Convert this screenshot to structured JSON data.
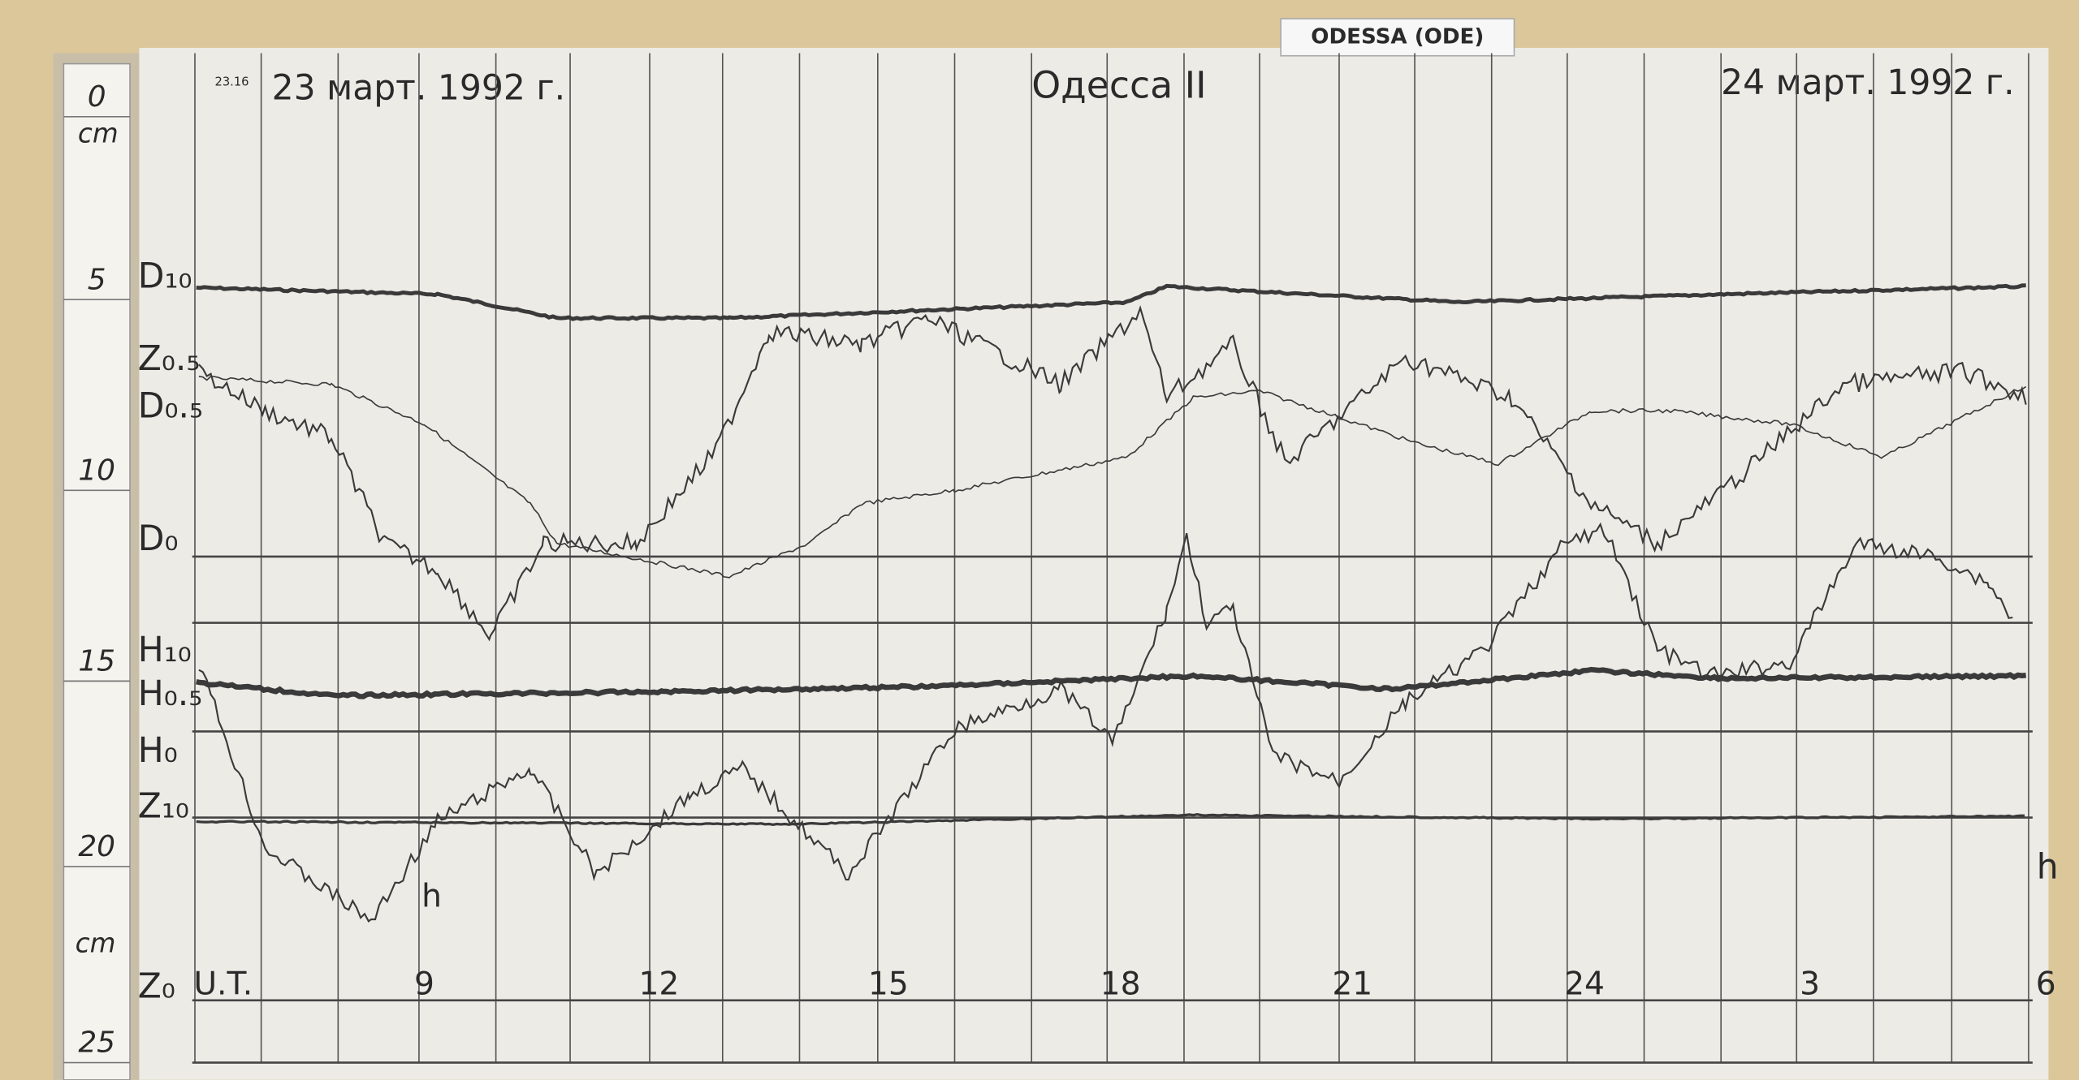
{
  "tag": "ODESSA (ODE)",
  "header": {
    "left_date": "23 март. 1992 г.",
    "station": "Одесса II",
    "right_date": "24 март. 1992 г.",
    "note": "23.16"
  },
  "ruler": {
    "unit": "cm",
    "unit_lower": "cm",
    "marks": [
      "0",
      "5",
      "10",
      "15",
      "20",
      "25"
    ]
  },
  "traces": [
    "D₁₀",
    "Z₀.₅",
    "D₀.₅",
    "D₀",
    "H₁₀",
    "H₀.₅",
    "H₀",
    "Z₁₀",
    "Z₀"
  ],
  "time_axis": {
    "start": "U.T.",
    "hours": [
      "9",
      "12",
      "15",
      "18",
      "21",
      "24",
      "3",
      "6"
    ],
    "unit": "h",
    "unit_upper": "h"
  }
}
